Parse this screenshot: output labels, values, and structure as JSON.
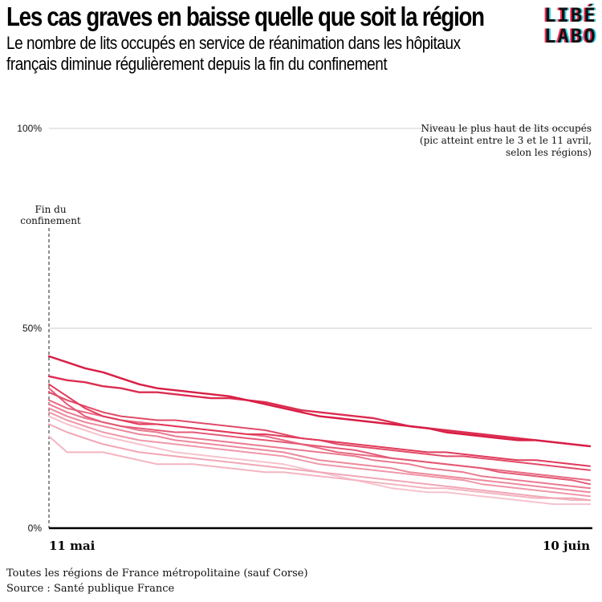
{
  "header": {
    "title": "Les cas graves en baisse quelle que soit la région",
    "subtitle_line1": "Le nombre de lits occupés en service de réanimation dans les hôpitaux",
    "subtitle_line2": "français diminue régulièrement depuis la fin du confinement"
  },
  "logo": {
    "line1": "LIBÉ",
    "line2": "LABO"
  },
  "footer": {
    "note": "Toutes les régions de France métropolitaine (sauf Corse)",
    "source": "Source : Santé publique France"
  },
  "colors": {
    "series": [
      "#d81e45",
      "#dc2d50",
      "#e03a5a",
      "#e24a68",
      "#e55a76",
      "#e86a83",
      "#ea7a90",
      "#ec899c",
      "#ef98a9",
      "#f1a7b5",
      "#f3b5c1",
      "#f5c3cd"
    ],
    "grid": "#cccccc",
    "axis": "#000000"
  },
  "chart_data": {
    "type": "line",
    "x": [
      "11 mai",
      "12 mai",
      "13 mai",
      "14 mai",
      "15 mai",
      "16 mai",
      "17 mai",
      "18 mai",
      "19 mai",
      "20 mai",
      "21 mai",
      "22 mai",
      "23 mai",
      "24 mai",
      "25 mai",
      "26 mai",
      "27 mai",
      "28 mai",
      "29 mai",
      "30 mai",
      "31 mai",
      "1 juin",
      "2 juin",
      "3 juin",
      "4 juin",
      "5 juin",
      "6 juin",
      "7 juin",
      "8 juin",
      "9 juin",
      "10 juin"
    ],
    "xtick_labels": [
      "11 mai",
      "10 juin"
    ],
    "ylim": [
      0,
      100
    ],
    "yticks": [
      0,
      50,
      100
    ],
    "ytick_labels": [
      "0%",
      "50%",
      "100%"
    ],
    "grid": true,
    "annotations": {
      "peak": [
        "Niveau le plus haut de lits occupés",
        "(pic atteint entre le 3 et le 11 avril,",
        "selon les régions)"
      ],
      "end_confinement": [
        "Fin du",
        "confinement"
      ]
    },
    "series": [
      {
        "values": [
          43,
          41.5,
          40,
          39,
          37.5,
          36,
          35,
          34.5,
          34,
          33.5,
          33,
          32,
          31,
          30,
          29,
          28,
          27.5,
          27,
          26.5,
          26,
          25.5,
          25,
          24,
          23.5,
          23,
          22.5,
          22,
          22,
          21.5,
          21,
          20.5
        ]
      },
      {
        "values": [
          38,
          37,
          36.5,
          35.5,
          35,
          34,
          34,
          33.5,
          33,
          32.5,
          32.5,
          32,
          31.5,
          30.5,
          29.5,
          29,
          28.5,
          28,
          27.5,
          26.5,
          25.5,
          25,
          24.5,
          24,
          23.5,
          23,
          22.5,
          22,
          21.5,
          21,
          20.5
        ]
      },
      {
        "values": [
          36,
          33,
          30,
          28,
          27,
          26,
          26,
          25.5,
          25,
          24.5,
          24,
          23.5,
          23.5,
          23,
          22.5,
          22,
          21.5,
          21,
          20.5,
          20,
          19.5,
          19,
          19,
          18.5,
          18,
          17.5,
          17,
          17,
          16.5,
          16,
          15.5
        ]
      },
      {
        "values": [
          34,
          32,
          30.5,
          29,
          28,
          27.5,
          27,
          27,
          26.5,
          26,
          25.5,
          25,
          24.5,
          23.5,
          22.5,
          22,
          21,
          20.5,
          20,
          19.5,
          19,
          18.5,
          18,
          18,
          17.5,
          17,
          16.5,
          16,
          15.5,
          15,
          14.5
        ]
      },
      {
        "values": [
          35,
          31,
          28,
          26.5,
          25.5,
          25,
          24.5,
          24,
          24,
          23.5,
          23,
          22.5,
          22,
          21.5,
          21,
          20.5,
          20,
          19.5,
          18.5,
          17.5,
          17,
          16.5,
          16,
          15.5,
          15,
          14,
          13.5,
          13,
          12.5,
          12,
          11
        ]
      },
      {
        "values": [
          32,
          30,
          29,
          28,
          27,
          26.5,
          26,
          25.5,
          25,
          24.5,
          24,
          23.5,
          23,
          22,
          21,
          20,
          19,
          18.5,
          18,
          17.5,
          17,
          16.5,
          16,
          15.5,
          15,
          14.5,
          14,
          13.5,
          13,
          12.5,
          12
        ]
      },
      {
        "values": [
          31,
          29,
          27.5,
          26.5,
          25.5,
          24.5,
          24,
          23,
          22.5,
          22,
          21.5,
          21,
          20.5,
          20,
          19.5,
          19,
          18.5,
          18,
          17,
          16.5,
          16,
          15,
          14.5,
          14,
          13,
          12.5,
          12,
          11.5,
          11,
          10.5,
          10
        ]
      },
      {
        "values": [
          30,
          28,
          26.5,
          25.5,
          24.5,
          23.5,
          23,
          22,
          21.5,
          21,
          20.5,
          20,
          19.5,
          19,
          18,
          17,
          16.5,
          16,
          15.5,
          15,
          14,
          13.5,
          13,
          12.5,
          12,
          11.5,
          11,
          10.5,
          10,
          9.5,
          9
        ]
      },
      {
        "values": [
          29,
          27,
          25.5,
          24,
          23,
          22,
          21.5,
          21,
          20.5,
          20,
          19.5,
          19,
          18.5,
          18,
          17,
          16,
          15.5,
          15,
          14.5,
          14,
          13.5,
          13,
          12.5,
          12,
          11,
          10.5,
          10,
          9.5,
          9,
          8.5,
          8
        ]
      },
      {
        "values": [
          26,
          24,
          22.5,
          21,
          20,
          19,
          18.5,
          18,
          17.5,
          17,
          16.5,
          16,
          15.5,
          15,
          14.5,
          14,
          13.5,
          13,
          12.5,
          12,
          11.5,
          11,
          10.5,
          10,
          9.5,
          9,
          8.5,
          8,
          7.5,
          7.5,
          7
        ]
      },
      {
        "values": [
          23,
          19,
          19,
          19,
          18,
          17,
          16,
          16,
          16,
          15.5,
          15,
          14.5,
          14,
          14,
          13.5,
          13,
          12.5,
          12,
          11.5,
          11,
          10.5,
          10,
          10,
          9.5,
          9,
          8.5,
          8,
          7.5,
          7.5,
          7,
          7
        ]
      },
      {
        "values": [
          28,
          26,
          24.5,
          23,
          22,
          21,
          20,
          19,
          18.5,
          18,
          17.5,
          17,
          16.5,
          16,
          15,
          14,
          13,
          12,
          11,
          10,
          9.5,
          9,
          9,
          8.5,
          8,
          7.5,
          7,
          6.5,
          6,
          6,
          6
        ]
      }
    ]
  }
}
